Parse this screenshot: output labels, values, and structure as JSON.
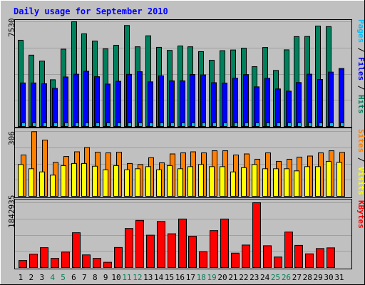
{
  "title": "Daily usage for September 2010",
  "colors": {
    "background": "#c0c0c0",
    "title": "#0000ff",
    "hits": "#00805c",
    "files": "#0000ff",
    "pages": "#00c0ff",
    "visits": "#ffff00",
    "sites": "#ff8000",
    "kbytes": "#ff0000",
    "weekend_day_label": "#00805c",
    "day_label": "#000000"
  },
  "chart_data": [
    {
      "type": "bar",
      "name": "hits-files-pages",
      "ymax_label": "7530",
      "ylim": [
        0,
        7530
      ],
      "right_label_parts": [
        {
          "text": "Pages",
          "color": "#00c0ff"
        },
        {
          "text": " / ",
          "color": "#000000"
        },
        {
          "text": "Files",
          "color": "#0000ff"
        },
        {
          "text": " / ",
          "color": "#000000"
        },
        {
          "text": "Hits",
          "color": "#00805c"
        }
      ],
      "categories": [
        "1",
        "2",
        "3",
        "4",
        "5",
        "6",
        "7",
        "8",
        "9",
        "10",
        "11",
        "12",
        "13",
        "14",
        "15",
        "16",
        "17",
        "18",
        "19",
        "20",
        "21",
        "22",
        "23",
        "24",
        "25",
        "26",
        "27",
        "28",
        "29",
        "30",
        "31"
      ],
      "series": [
        {
          "name": "Hits",
          "values": [
            6200,
            5130,
            4700,
            3360,
            5560,
            7530,
            6660,
            6140,
            5580,
            5840,
            7260,
            5730,
            6520,
            5690,
            5470,
            5790,
            5730,
            5380,
            4760,
            5450,
            5500,
            5630,
            4300,
            5680,
            4030,
            5510,
            6460,
            6470,
            7220,
            7180,
            0
          ]
        },
        {
          "name": "Files",
          "values": [
            3130,
            3130,
            3070,
            2740,
            3560,
            3760,
            3970,
            3580,
            3050,
            3250,
            3750,
            3940,
            3210,
            3640,
            3280,
            3280,
            3740,
            3710,
            3150,
            3120,
            3470,
            3730,
            2850,
            3460,
            2700,
            2540,
            3160,
            3760,
            3380,
            3910,
            4170
          ]
        },
        {
          "name": "Pages",
          "values": [
            270,
            270,
            270,
            270,
            270,
            270,
            270,
            270,
            270,
            270,
            270,
            270,
            270,
            270,
            270,
            270,
            270,
            270,
            270,
            270,
            270,
            270,
            270,
            270,
            270,
            270,
            270,
            270,
            270,
            270,
            270
          ]
        }
      ]
    },
    {
      "type": "bar",
      "name": "visits-sites",
      "ymax_label": "306",
      "ylim": [
        0,
        306
      ],
      "right_label_parts": [
        {
          "text": "Sites",
          "color": "#ff8000"
        },
        {
          "text": " / ",
          "color": "#000000"
        },
        {
          "text": "Visits",
          "color": "#ffff00"
        }
      ],
      "categories": [
        "1",
        "2",
        "3",
        "4",
        "5",
        "6",
        "7",
        "8",
        "9",
        "10",
        "11",
        "12",
        "13",
        "14",
        "15",
        "16",
        "17",
        "18",
        "19",
        "20",
        "21",
        "22",
        "23",
        "24",
        "25",
        "26",
        "27",
        "28",
        "29",
        "30",
        "31"
      ],
      "series": [
        {
          "name": "Sites",
          "values": [
            195,
            305,
            265,
            160,
            188,
            210,
            230,
            208,
            205,
            208,
            155,
            150,
            182,
            158,
            200,
            205,
            210,
            205,
            215,
            215,
            195,
            200,
            175,
            205,
            165,
            175,
            185,
            190,
            205,
            215,
            207
          ]
        },
        {
          "name": "Visits",
          "values": [
            150,
            130,
            115,
            100,
            145,
            155,
            155,
            142,
            125,
            145,
            125,
            130,
            140,
            125,
            145,
            130,
            140,
            150,
            140,
            140,
            115,
            135,
            150,
            130,
            130,
            130,
            120,
            140,
            140,
            165,
            160
          ]
        }
      ]
    },
    {
      "type": "bar",
      "name": "kbytes",
      "ymax_label": "1842935",
      "ylim": [
        0,
        1842935
      ],
      "right_label_parts": [
        {
          "text": "KBytes",
          "color": "#ff0000"
        }
      ],
      "categories": [
        "1",
        "2",
        "3",
        "4",
        "5",
        "6",
        "7",
        "8",
        "9",
        "10",
        "11",
        "12",
        "13",
        "14",
        "15",
        "16",
        "17",
        "18",
        "19",
        "20",
        "21",
        "22",
        "23",
        "24",
        "25",
        "26",
        "27",
        "28",
        "29",
        "30",
        "31"
      ],
      "series": [
        {
          "name": "KBytes",
          "values": [
            200000,
            380000,
            565000,
            260000,
            440000,
            990000,
            360000,
            260000,
            150000,
            570000,
            1110000,
            1340000,
            920000,
            1310000,
            960000,
            1380000,
            890000,
            450000,
            1050000,
            1380000,
            410000,
            640000,
            1842935,
            620000,
            300000,
            1010000,
            630000,
            390000,
            540000,
            560000,
            0
          ]
        }
      ]
    }
  ],
  "day_labels": [
    "1",
    "2",
    "3",
    "4",
    "5",
    "6",
    "7",
    "8",
    "9",
    "10",
    "11",
    "12",
    "13",
    "14",
    "15",
    "16",
    "17",
    "18",
    "19",
    "20",
    "21",
    "22",
    "23",
    "24",
    "25",
    "26",
    "27",
    "28",
    "29",
    "30",
    "31"
  ],
  "weekend_days": [
    "4",
    "5",
    "11",
    "12",
    "18",
    "19",
    "25",
    "26"
  ]
}
